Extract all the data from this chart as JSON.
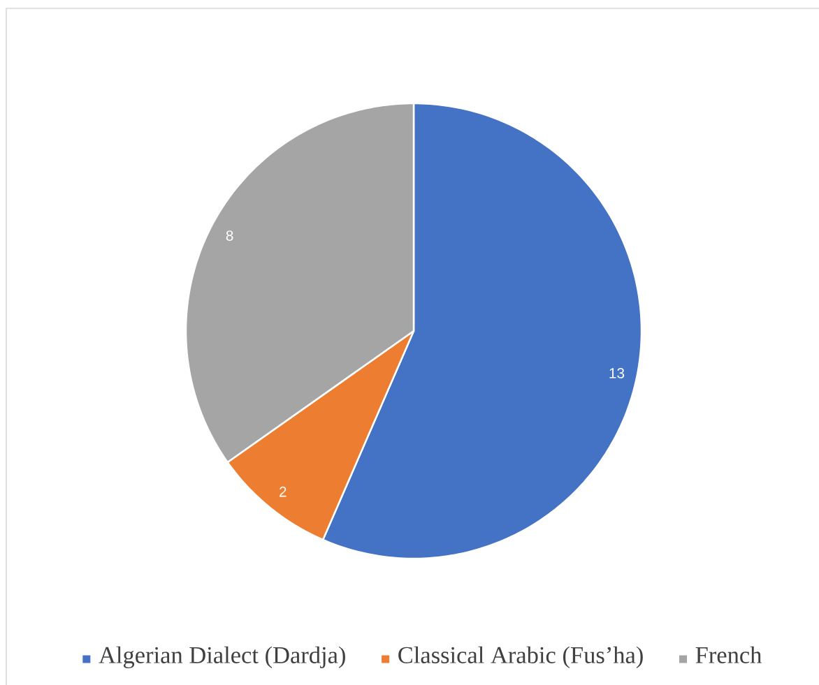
{
  "chart_data": {
    "type": "pie",
    "categories": [
      "Algerian Dialect (Dardja)",
      "Classical Arabic (Fus’ha)",
      "French"
    ],
    "values": [
      13,
      2,
      8
    ],
    "colors": [
      "#4472c4",
      "#ed7d31",
      "#a5a5a5"
    ],
    "data_labels": true,
    "legend": "bottom"
  }
}
